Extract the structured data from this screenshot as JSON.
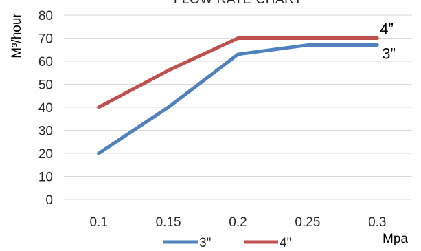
{
  "chart_data": {
    "type": "line",
    "title": "FLOW RATE CHART",
    "xlabel": "Mpa",
    "ylabel": "M³/hour",
    "x": [
      "0.1",
      "0.15",
      "0.2",
      "0.25",
      "0.3"
    ],
    "ylim": [
      0,
      80
    ],
    "yticks": [
      "0",
      "10",
      "20",
      "30",
      "40",
      "50",
      "60",
      "70",
      "80"
    ],
    "grid": true,
    "legend_position": "bottom",
    "series": [
      {
        "name": "3\"",
        "values": [
          20,
          40,
          63,
          67,
          67
        ],
        "color": "#4F81BD",
        "end_label": "3”"
      },
      {
        "name": "4\"",
        "values": [
          40,
          56,
          70,
          70,
          70
        ],
        "color": "#C0504D",
        "end_label": "4”"
      }
    ]
  }
}
